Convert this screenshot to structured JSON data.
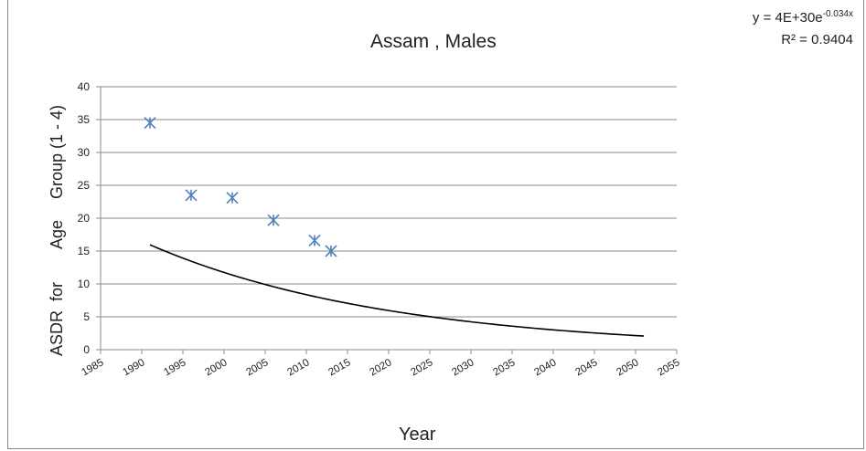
{
  "chart_data": {
    "type": "scatter",
    "title": "Assam , Males",
    "xlabel": "Year",
    "ylabel_words": [
      "ASDR",
      "for",
      "Age",
      "Group (1 - 4)"
    ],
    "xlim": [
      1985,
      2055
    ],
    "ylim": [
      0,
      40
    ],
    "xticks": [
      1985,
      1990,
      1995,
      2000,
      2005,
      2010,
      2015,
      2020,
      2025,
      2030,
      2035,
      2040,
      2045,
      2050,
      2055
    ],
    "yticks": [
      0,
      5,
      10,
      15,
      20,
      25,
      30,
      35,
      40
    ],
    "grid": true,
    "legend": "none",
    "series": [
      {
        "marker": "asterisk",
        "color": "#4f81bd",
        "x": [
          1991,
          1996,
          2001,
          2006,
          2011,
          2013
        ],
        "y": [
          34.5,
          23.5,
          23.1,
          19.7,
          16.6,
          15.0
        ]
      }
    ],
    "trendline": {
      "kind": "exponential",
      "a": 4e+30,
      "b": -0.034,
      "x_range": [
        1991,
        2051
      ],
      "color": "#000000",
      "equation_base": "y = 4E+30e",
      "equation_exp": "-0.034x",
      "r2_text": "R² = 0.9404"
    }
  }
}
